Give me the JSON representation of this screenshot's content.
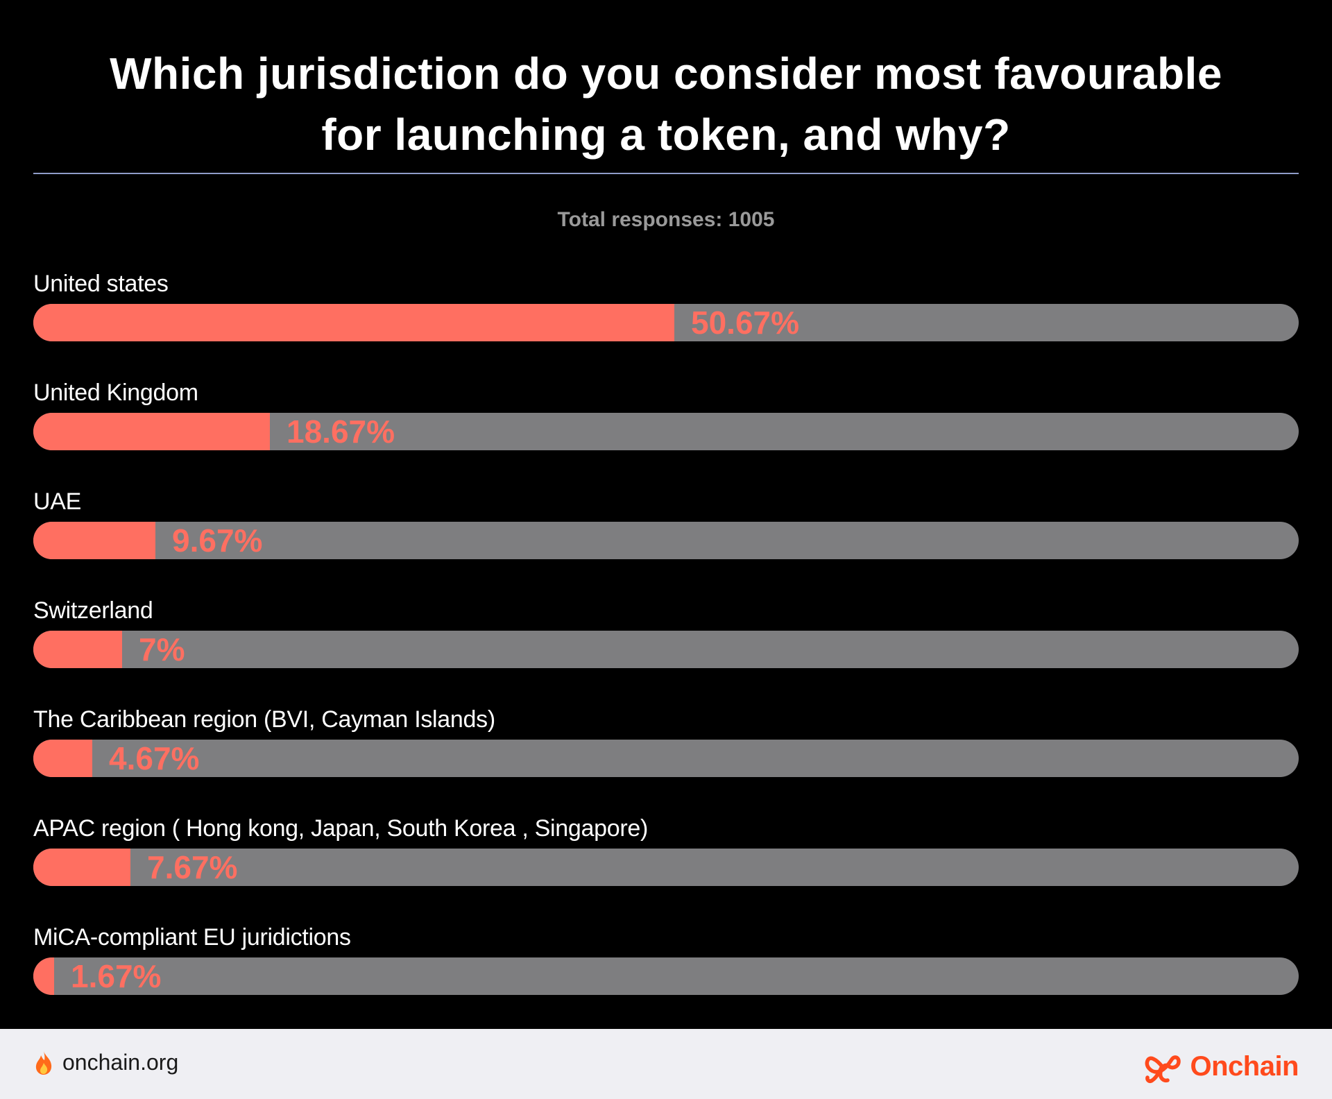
{
  "header": {
    "title_line1": "Which jurisdiction do you consider most favourable",
    "title_line2": "for launching a token, and why?",
    "total_responses": "Total responses: 1005"
  },
  "colors": {
    "background": "#000000",
    "fill": "#ff6f61",
    "track": "#7e7e80",
    "divider": "#8f9dc9",
    "brand": "#ff4a1c",
    "footer_bg": "#efeff3"
  },
  "chart_data": {
    "type": "bar",
    "orientation": "horizontal",
    "title": "Which jurisdiction do you consider most favourable for launching a token, and why?",
    "subtitle": "Total responses: 1005",
    "categories": [
      "United states",
      "United Kingdom",
      "UAE",
      "Switzerland",
      "The Caribbean region (BVI, Cayman Islands)",
      "APAC region ( Hong kong, Japan, South Korea , Singapore)",
      "MiCA-compliant EU juridictions"
    ],
    "values": [
      50.67,
      18.67,
      9.67,
      7,
      4.67,
      7.67,
      1.67
    ],
    "value_labels": [
      "50.67%",
      "18.67%",
      "9.67%",
      "7%",
      "4.67%",
      "7.67%",
      "1.67%"
    ],
    "xlim": [
      0,
      100
    ],
    "grid": false,
    "legend": "none"
  },
  "footer": {
    "site": "onchain.org",
    "site_icon": "flame-icon",
    "brand": "Onchain",
    "brand_icon": "onchain-logo-icon"
  }
}
